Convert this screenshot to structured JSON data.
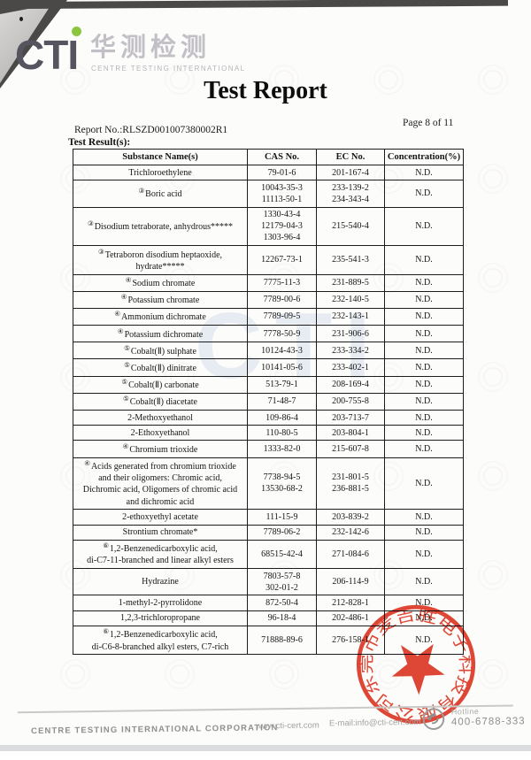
{
  "colors": {
    "brand_green": "#8cc63e",
    "logo_gray": "#56545e",
    "logo_light": "#c2bfc6",
    "stamp_red": "#df3a27",
    "watermark_blue": "#9db8d6"
  },
  "header": {
    "logo_text": "CTI",
    "logo_cn": "华测检测",
    "logo_sub": "CENTRE TESTING INTERNATIONAL",
    "title": "Test Report",
    "report_no": "Report No.:RLSZD001007380002R1",
    "page_info": "Page 8 of 11",
    "section_label": "Test Result(s):"
  },
  "watermark": {
    "text": "CTI"
  },
  "table": {
    "headers": [
      "Substance Name(s)",
      "CAS No.",
      "EC No.",
      "Concentration(%)"
    ],
    "rows": [
      {
        "sup": "",
        "name": "Trichloroethylene",
        "cas": "79-01-6",
        "ec": "201-167-4",
        "conc": "N.D."
      },
      {
        "sup": "③",
        "name": "Boric acid",
        "cas": "10043-35-3\n11113-50-1",
        "ec": "233-139-2\n234-343-4",
        "conc": "N.D."
      },
      {
        "sup": "③",
        "name": "Disodium tetraborate, anhydrous*****",
        "cas": "1330-43-4\n12179-04-3\n1303-96-4",
        "ec": "215-540-4",
        "conc": "N.D."
      },
      {
        "sup": "③",
        "name": "Tetraboron disodium heptaoxide,\nhydrate*****",
        "cas": "12267-73-1",
        "ec": "235-541-3",
        "conc": "N.D."
      },
      {
        "sup": "④",
        "name": "Sodium chromate",
        "cas": "7775-11-3",
        "ec": "231-889-5",
        "conc": "N.D."
      },
      {
        "sup": "④",
        "name": "Potassium chromate",
        "cas": "7789-00-6",
        "ec": "232-140-5",
        "conc": "N.D."
      },
      {
        "sup": "④",
        "name": "Ammonium dichromate",
        "cas": "7789-09-5",
        "ec": "232-143-1",
        "conc": "N.D."
      },
      {
        "sup": "④",
        "name": "Potassium dichromate",
        "cas": "7778-50-9",
        "ec": "231-906-6",
        "conc": "N.D."
      },
      {
        "sup": "⑤",
        "name": "Cobalt(Ⅱ) sulphate",
        "cas": "10124-43-3",
        "ec": "233-334-2",
        "conc": "N.D."
      },
      {
        "sup": "⑤",
        "name": "Cobalt(Ⅱ) dinitrate",
        "cas": "10141-05-6",
        "ec": "233-402-1",
        "conc": "N.D."
      },
      {
        "sup": "⑤",
        "name": "Cobalt(Ⅱ) carbonate",
        "cas": "513-79-1",
        "ec": "208-169-4",
        "conc": "N.D."
      },
      {
        "sup": "⑤",
        "name": "Cobalt(Ⅱ) diacetate",
        "cas": "71-48-7",
        "ec": "200-755-8",
        "conc": "N.D."
      },
      {
        "sup": "",
        "name": "2-Methoxyethanol",
        "cas": "109-86-4",
        "ec": "203-713-7",
        "conc": "N.D."
      },
      {
        "sup": "",
        "name": "2-Ethoxyethanol",
        "cas": "110-80-5",
        "ec": "203-804-1",
        "conc": "N.D."
      },
      {
        "sup": "④",
        "name": "Chromium trioxide",
        "cas": "1333-82-0",
        "ec": "215-607-8",
        "conc": "N.D."
      },
      {
        "sup": "④",
        "name": "Acids generated from chromium trioxide\nand their oligomers: Chromic acid,\nDichromic acid, Oligomers of chromic acid\nand dichromic acid",
        "cas": "7738-94-5\n13530-68-2",
        "ec": "231-801-5\n236-881-5",
        "conc": "N.D."
      },
      {
        "sup": "",
        "name": "2-ethoxyethyl acetate",
        "cas": "111-15-9",
        "ec": "203-839-2",
        "conc": "N.D."
      },
      {
        "sup": "",
        "name": "Strontium chromate*",
        "cas": "7789-06-2",
        "ec": "232-142-6",
        "conc": "N.D."
      },
      {
        "sup": "⑥",
        "name": "1,2-Benzenedicarboxylic acid,\ndi-C7-11-branched and linear alkyl esters",
        "cas": "68515-42-4",
        "ec": "271-084-6",
        "conc": "N.D."
      },
      {
        "sup": "",
        "name": "Hydrazine",
        "cas": "7803-57-8\n302-01-2",
        "ec": "206-114-9",
        "conc": "N.D."
      },
      {
        "sup": "",
        "name": "1-methyl-2-pyrrolidone",
        "cas": "872-50-4",
        "ec": "212-828-1",
        "conc": "N.D."
      },
      {
        "sup": "",
        "name": "1,2,3-trichloropropane",
        "cas": "96-18-4",
        "ec": "202-486-1",
        "conc": "N.D."
      },
      {
        "sup": "⑥",
        "name": "1,2-Benzenedicarboxylic acid,\ndi-C6-8-branched alkyl esters, C7-rich",
        "cas": "71888-89-6",
        "ec": "276-158-1",
        "conc": "N.D."
      }
    ]
  },
  "stamp": {
    "company": "东莞市麦吉胜电子科技有限公司"
  },
  "footer": {
    "company": "CENTRE TESTING INTERNATIONAL CORPORATION",
    "website": "www.cti-cert.com",
    "email": "E-mail:info@cti-cert.com",
    "hotline_label": "Hotline",
    "hotline_number": "400-6788-333"
  }
}
